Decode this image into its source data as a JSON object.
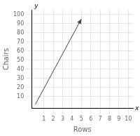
{
  "chart_data": {
    "type": "line",
    "xlabel": "Rows",
    "ylabel": "Chairs",
    "x": [
      0.08,
      5
    ],
    "values": [
      1,
      95
    ],
    "color": "#444444",
    "marker": "arrow",
    "xlim": [
      -0.3,
      10.5
    ],
    "ylim": [
      -3,
      105
    ],
    "xticks": [
      1,
      2,
      3,
      4,
      5,
      6,
      7,
      8,
      9,
      10
    ],
    "yticks": [
      10,
      20,
      30,
      40,
      50,
      60,
      70,
      80,
      90,
      100
    ],
    "grid": true,
    "annotations": [
      {
        "text": "x",
        "axis": "x"
      },
      {
        "text": "y",
        "axis": "y"
      }
    ]
  }
}
